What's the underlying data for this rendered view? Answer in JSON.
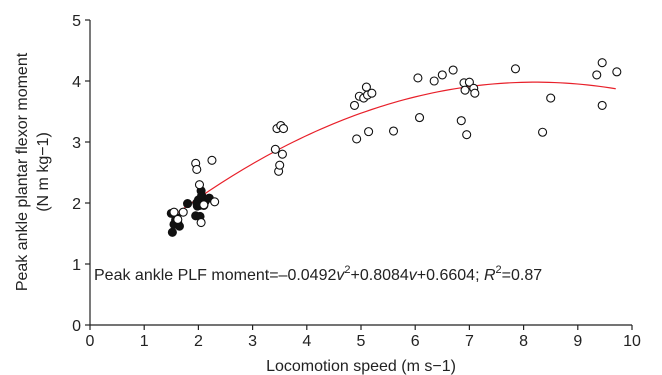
{
  "chart_data": {
    "type": "scatter",
    "xlabel": "Locomotion speed (m s−1)",
    "ylabel_line1": "Peak ankle plantar flexor moment",
    "ylabel_line2": "(N m kg−1)",
    "xlim": [
      0,
      10
    ],
    "ylim": [
      0,
      5
    ],
    "x_ticks": [
      "0",
      "1",
      "2",
      "3",
      "4",
      "5",
      "6",
      "7",
      "8",
      "9",
      "10"
    ],
    "y_ticks": [
      "0",
      "1",
      "2",
      "3",
      "4",
      "5"
    ],
    "grid": false,
    "fit": {
      "a": -0.0492,
      "b": 0.8084,
      "c": 0.6604,
      "x_range": [
        1.5,
        9.7
      ],
      "color": "#e8202a"
    },
    "equation": {
      "prefix": "Peak ankle PLF moment=–0.0492",
      "v1": "v",
      "sup2": "2",
      "mid": "+0.8084",
      "v2": "v",
      "tail": "+0.6604; ",
      "R": "R",
      "sup2b": "2",
      "end": "=0.87"
    },
    "series": [
      {
        "marker": "filled",
        "color": "#111111",
        "points": [
          [
            1.5,
            1.83
          ],
          [
            1.52,
            1.52
          ],
          [
            1.55,
            1.65
          ],
          [
            1.58,
            1.72
          ],
          [
            1.6,
            1.76
          ],
          [
            1.62,
            1.67
          ],
          [
            1.65,
            1.62
          ],
          [
            1.8,
            1.99
          ],
          [
            1.95,
            1.79
          ],
          [
            1.97,
            2.0
          ],
          [
            1.98,
            1.95
          ],
          [
            2.0,
            2.05
          ],
          [
            2.02,
            1.96
          ],
          [
            2.03,
            1.78
          ],
          [
            2.05,
            2.2
          ],
          [
            2.06,
            2.12
          ],
          [
            2.1,
            1.96
          ],
          [
            2.12,
            2.02
          ],
          [
            2.2,
            2.08
          ]
        ]
      },
      {
        "marker": "open",
        "color": "#111111",
        "points": [
          [
            1.55,
            1.85
          ],
          [
            1.62,
            1.73
          ],
          [
            1.72,
            1.85
          ],
          [
            1.95,
            2.65
          ],
          [
            1.97,
            2.55
          ],
          [
            2.02,
            2.3
          ],
          [
            2.05,
            1.68
          ],
          [
            2.1,
            1.97
          ],
          [
            2.25,
            2.7
          ],
          [
            2.3,
            2.02
          ],
          [
            3.42,
            2.88
          ],
          [
            3.45,
            3.22
          ],
          [
            3.48,
            2.52
          ],
          [
            3.5,
            2.62
          ],
          [
            3.52,
            3.27
          ],
          [
            3.55,
            2.8
          ],
          [
            3.57,
            3.22
          ],
          [
            4.88,
            3.6
          ],
          [
            4.92,
            3.05
          ],
          [
            4.97,
            3.75
          ],
          [
            5.05,
            3.72
          ],
          [
            5.1,
            3.9
          ],
          [
            5.12,
            3.77
          ],
          [
            5.14,
            3.17
          ],
          [
            5.2,
            3.8
          ],
          [
            5.6,
            3.18
          ],
          [
            6.05,
            4.05
          ],
          [
            6.08,
            3.4
          ],
          [
            6.35,
            4.0
          ],
          [
            6.5,
            4.1
          ],
          [
            6.7,
            4.18
          ],
          [
            6.85,
            3.35
          ],
          [
            6.9,
            3.97
          ],
          [
            6.92,
            3.85
          ],
          [
            6.95,
            3.12
          ],
          [
            7.0,
            3.98
          ],
          [
            7.08,
            3.88
          ],
          [
            7.1,
            3.8
          ],
          [
            7.85,
            4.2
          ],
          [
            8.35,
            3.16
          ],
          [
            8.5,
            3.72
          ],
          [
            9.35,
            4.1
          ],
          [
            9.45,
            4.3
          ],
          [
            9.45,
            3.6
          ],
          [
            9.72,
            4.15
          ]
        ]
      }
    ]
  }
}
